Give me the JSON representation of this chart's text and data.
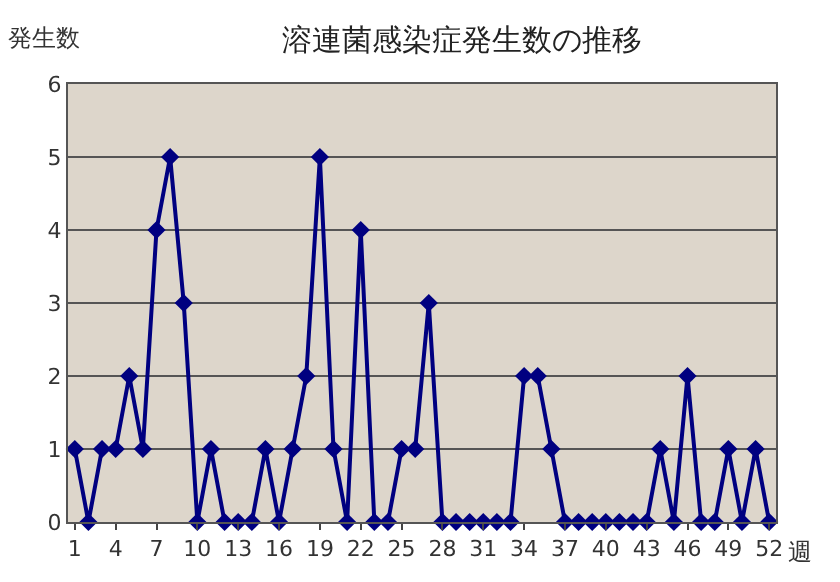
{
  "chart_data": {
    "type": "line",
    "title": "溶連菌感染症発生数の推移",
    "xlabel": "週",
    "ylabel": "発生数",
    "x": [
      1,
      2,
      3,
      4,
      5,
      6,
      7,
      8,
      9,
      10,
      11,
      12,
      13,
      14,
      15,
      16,
      17,
      18,
      19,
      20,
      21,
      22,
      23,
      24,
      25,
      26,
      27,
      28,
      29,
      30,
      31,
      32,
      33,
      34,
      35,
      36,
      37,
      38,
      39,
      40,
      41,
      42,
      43,
      44,
      45,
      46,
      47,
      48,
      49,
      50,
      51,
      52
    ],
    "series": [
      {
        "color": "#000080",
        "values": [
          1,
          0,
          1,
          1,
          2,
          1,
          4,
          5,
          3,
          0,
          1,
          0,
          0,
          0,
          1,
          0,
          1,
          2,
          5,
          1,
          0,
          4,
          0,
          0,
          1,
          1,
          3,
          0,
          0,
          0,
          0,
          0,
          0,
          2,
          2,
          1,
          0,
          0,
          0,
          0,
          0,
          0,
          0,
          1,
          0,
          2,
          0,
          0,
          1,
          0,
          1,
          0
        ]
      }
    ],
    "xlim": [
      0.5,
      52.5
    ],
    "xticks": [
      1,
      4,
      7,
      10,
      13,
      16,
      19,
      22,
      25,
      28,
      31,
      34,
      37,
      40,
      43,
      46,
      49,
      52
    ],
    "ylim": [
      0,
      6
    ],
    "yticks": [
      0,
      1,
      2,
      3,
      4,
      5,
      6
    ],
    "grid": "y",
    "marker": "diamond",
    "line_style": "solid"
  }
}
